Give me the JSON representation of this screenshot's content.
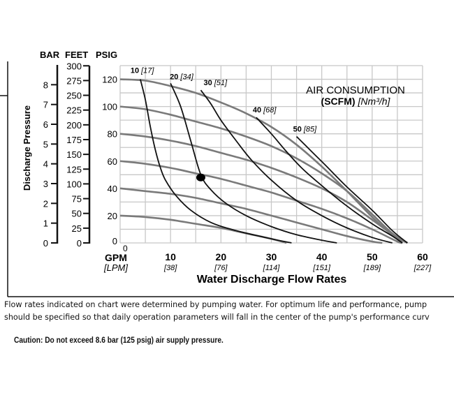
{
  "chart_data": {
    "type": "line",
    "xlabel": "Water Discharge Flow Rates",
    "x_unit_primary": "GPM",
    "x_unit_secondary": "[LPM]",
    "xlim": [
      0,
      60
    ],
    "ylim": [
      0,
      130
    ],
    "grid": true,
    "x_ticks": [
      {
        "gpm": "10",
        "lpm": "[38]"
      },
      {
        "gpm": "20",
        "lpm": "[76]"
      },
      {
        "gpm": "30",
        "lpm": "[114]"
      },
      {
        "gpm": "40",
        "lpm": "[151]"
      },
      {
        "gpm": "50",
        "lpm": "[189]"
      },
      {
        "gpm": "60",
        "lpm": "[227]"
      }
    ],
    "x_zero_label": "0",
    "ylabel": "Discharge Pressure",
    "y_axes": {
      "bar": {
        "label": "BAR",
        "ticks": [
          "0",
          "1",
          "2",
          "3",
          "4",
          "5",
          "6",
          "7",
          "8"
        ]
      },
      "feet": {
        "label": "FEET",
        "ticks": [
          "0",
          "25",
          "50",
          "75",
          "100",
          "125",
          "150",
          "175",
          "200",
          "225",
          "250",
          "275",
          "300"
        ]
      },
      "psig": {
        "label": "PSIG",
        "ticks": [
          "0",
          "20",
          "40",
          "60",
          "80",
          "100",
          "120"
        ]
      }
    },
    "pressure_curves": [
      {
        "points": [
          [
            0,
            120
          ],
          [
            5,
            119
          ],
          [
            10,
            115
          ],
          [
            15,
            110
          ],
          [
            20,
            103
          ],
          [
            25,
            95
          ],
          [
            30,
            85
          ],
          [
            35,
            72
          ],
          [
            40,
            56
          ],
          [
            45,
            38
          ],
          [
            50,
            19
          ],
          [
            54,
            6
          ],
          [
            57,
            0
          ]
        ]
      },
      {
        "points": [
          [
            0,
            100
          ],
          [
            5,
            98
          ],
          [
            10,
            94
          ],
          [
            15,
            89
          ],
          [
            20,
            84
          ],
          [
            25,
            78
          ],
          [
            30,
            71
          ],
          [
            35,
            62
          ],
          [
            40,
            51
          ],
          [
            45,
            38
          ],
          [
            50,
            21
          ],
          [
            54,
            7
          ],
          [
            57,
            0
          ]
        ]
      },
      {
        "points": [
          [
            0,
            80
          ],
          [
            5,
            78
          ],
          [
            10,
            75
          ],
          [
            15,
            71
          ],
          [
            20,
            66
          ],
          [
            25,
            61
          ],
          [
            30,
            55
          ],
          [
            35,
            48
          ],
          [
            40,
            40
          ],
          [
            45,
            30
          ],
          [
            50,
            17
          ],
          [
            54,
            6
          ],
          [
            56,
            0
          ]
        ]
      },
      {
        "points": [
          [
            0,
            60
          ],
          [
            5,
            58
          ],
          [
            10,
            55
          ],
          [
            15,
            51
          ],
          [
            20,
            47
          ],
          [
            25,
            42
          ],
          [
            30,
            37
          ],
          [
            35,
            31
          ],
          [
            40,
            25
          ],
          [
            45,
            18
          ],
          [
            50,
            10
          ],
          [
            55,
            1
          ],
          [
            56,
            0
          ]
        ]
      },
      {
        "points": [
          [
            0,
            40
          ],
          [
            5,
            38
          ],
          [
            10,
            36
          ],
          [
            15,
            33
          ],
          [
            20,
            29
          ],
          [
            25,
            25
          ],
          [
            30,
            20
          ],
          [
            35,
            15
          ],
          [
            40,
            10
          ],
          [
            45,
            5
          ],
          [
            50,
            1
          ],
          [
            52,
            0
          ]
        ]
      },
      {
        "points": [
          [
            0,
            20
          ],
          [
            5,
            19
          ],
          [
            10,
            17
          ],
          [
            15,
            14
          ],
          [
            20,
            11
          ],
          [
            25,
            7
          ],
          [
            30,
            3
          ],
          [
            33,
            0
          ]
        ]
      }
    ],
    "air_consumption_title": "AIR CONSUMPTION",
    "air_consumption_units": "(SCFM)",
    "air_consumption_units_metric": "[Nm³/h]",
    "air_curves": [
      {
        "scfm": "10",
        "nm3h": "[17]",
        "points": [
          [
            4,
            120
          ],
          [
            5,
            105
          ],
          [
            6,
            85
          ],
          [
            7,
            68
          ],
          [
            8,
            55
          ],
          [
            9,
            46
          ],
          [
            11,
            35
          ],
          [
            14,
            24
          ],
          [
            18,
            15
          ],
          [
            23,
            9
          ],
          [
            30,
            3
          ],
          [
            34,
            0
          ]
        ]
      },
      {
        "scfm": "20",
        "nm3h": "[34]",
        "points": [
          [
            10,
            117
          ],
          [
            12,
            100
          ],
          [
            14,
            75
          ],
          [
            16,
            50
          ],
          [
            18,
            39
          ],
          [
            21,
            29
          ],
          [
            25,
            20
          ],
          [
            30,
            12
          ],
          [
            35,
            6
          ],
          [
            40,
            2
          ],
          [
            43,
            0
          ]
        ]
      },
      {
        "scfm": "30",
        "nm3h": "[51]",
        "points": [
          [
            16,
            112
          ],
          [
            18,
            102
          ],
          [
            20,
            90
          ],
          [
            23,
            75
          ],
          [
            26,
            61
          ],
          [
            30,
            46
          ],
          [
            35,
            31
          ],
          [
            40,
            20
          ],
          [
            45,
            11
          ],
          [
            50,
            4
          ],
          [
            54,
            0
          ]
        ]
      },
      {
        "scfm": "40",
        "nm3h": "[68]",
        "points": [
          [
            27,
            92
          ],
          [
            30,
            80
          ],
          [
            33,
            67
          ],
          [
            36,
            55
          ],
          [
            40,
            42
          ],
          [
            45,
            27
          ],
          [
            50,
            14
          ],
          [
            54,
            5
          ],
          [
            56,
            0
          ]
        ]
      },
      {
        "scfm": "50",
        "nm3h": "[85]",
        "points": [
          [
            35,
            78
          ],
          [
            38,
            67
          ],
          [
            41,
            56
          ],
          [
            45,
            41
          ],
          [
            50,
            24
          ],
          [
            54,
            9
          ],
          [
            57,
            0
          ]
        ]
      }
    ],
    "marked_point": {
      "gpm": 16,
      "psig": 48
    }
  },
  "footer": {
    "note_line1": "Flow rates indicated on chart were determined by pumping water. For optimum life and performance, pump",
    "note_line2": "should be specified so that daily operation parameters will fall in the center of the pump's performance curv",
    "caution": "Caution: Do not exceed 8.6 bar (125 psig) air supply pressure."
  },
  "colors": {
    "pressure_curve": "#7a7a7a",
    "air_curve": "#111111",
    "grid": "#c8c8c8"
  }
}
